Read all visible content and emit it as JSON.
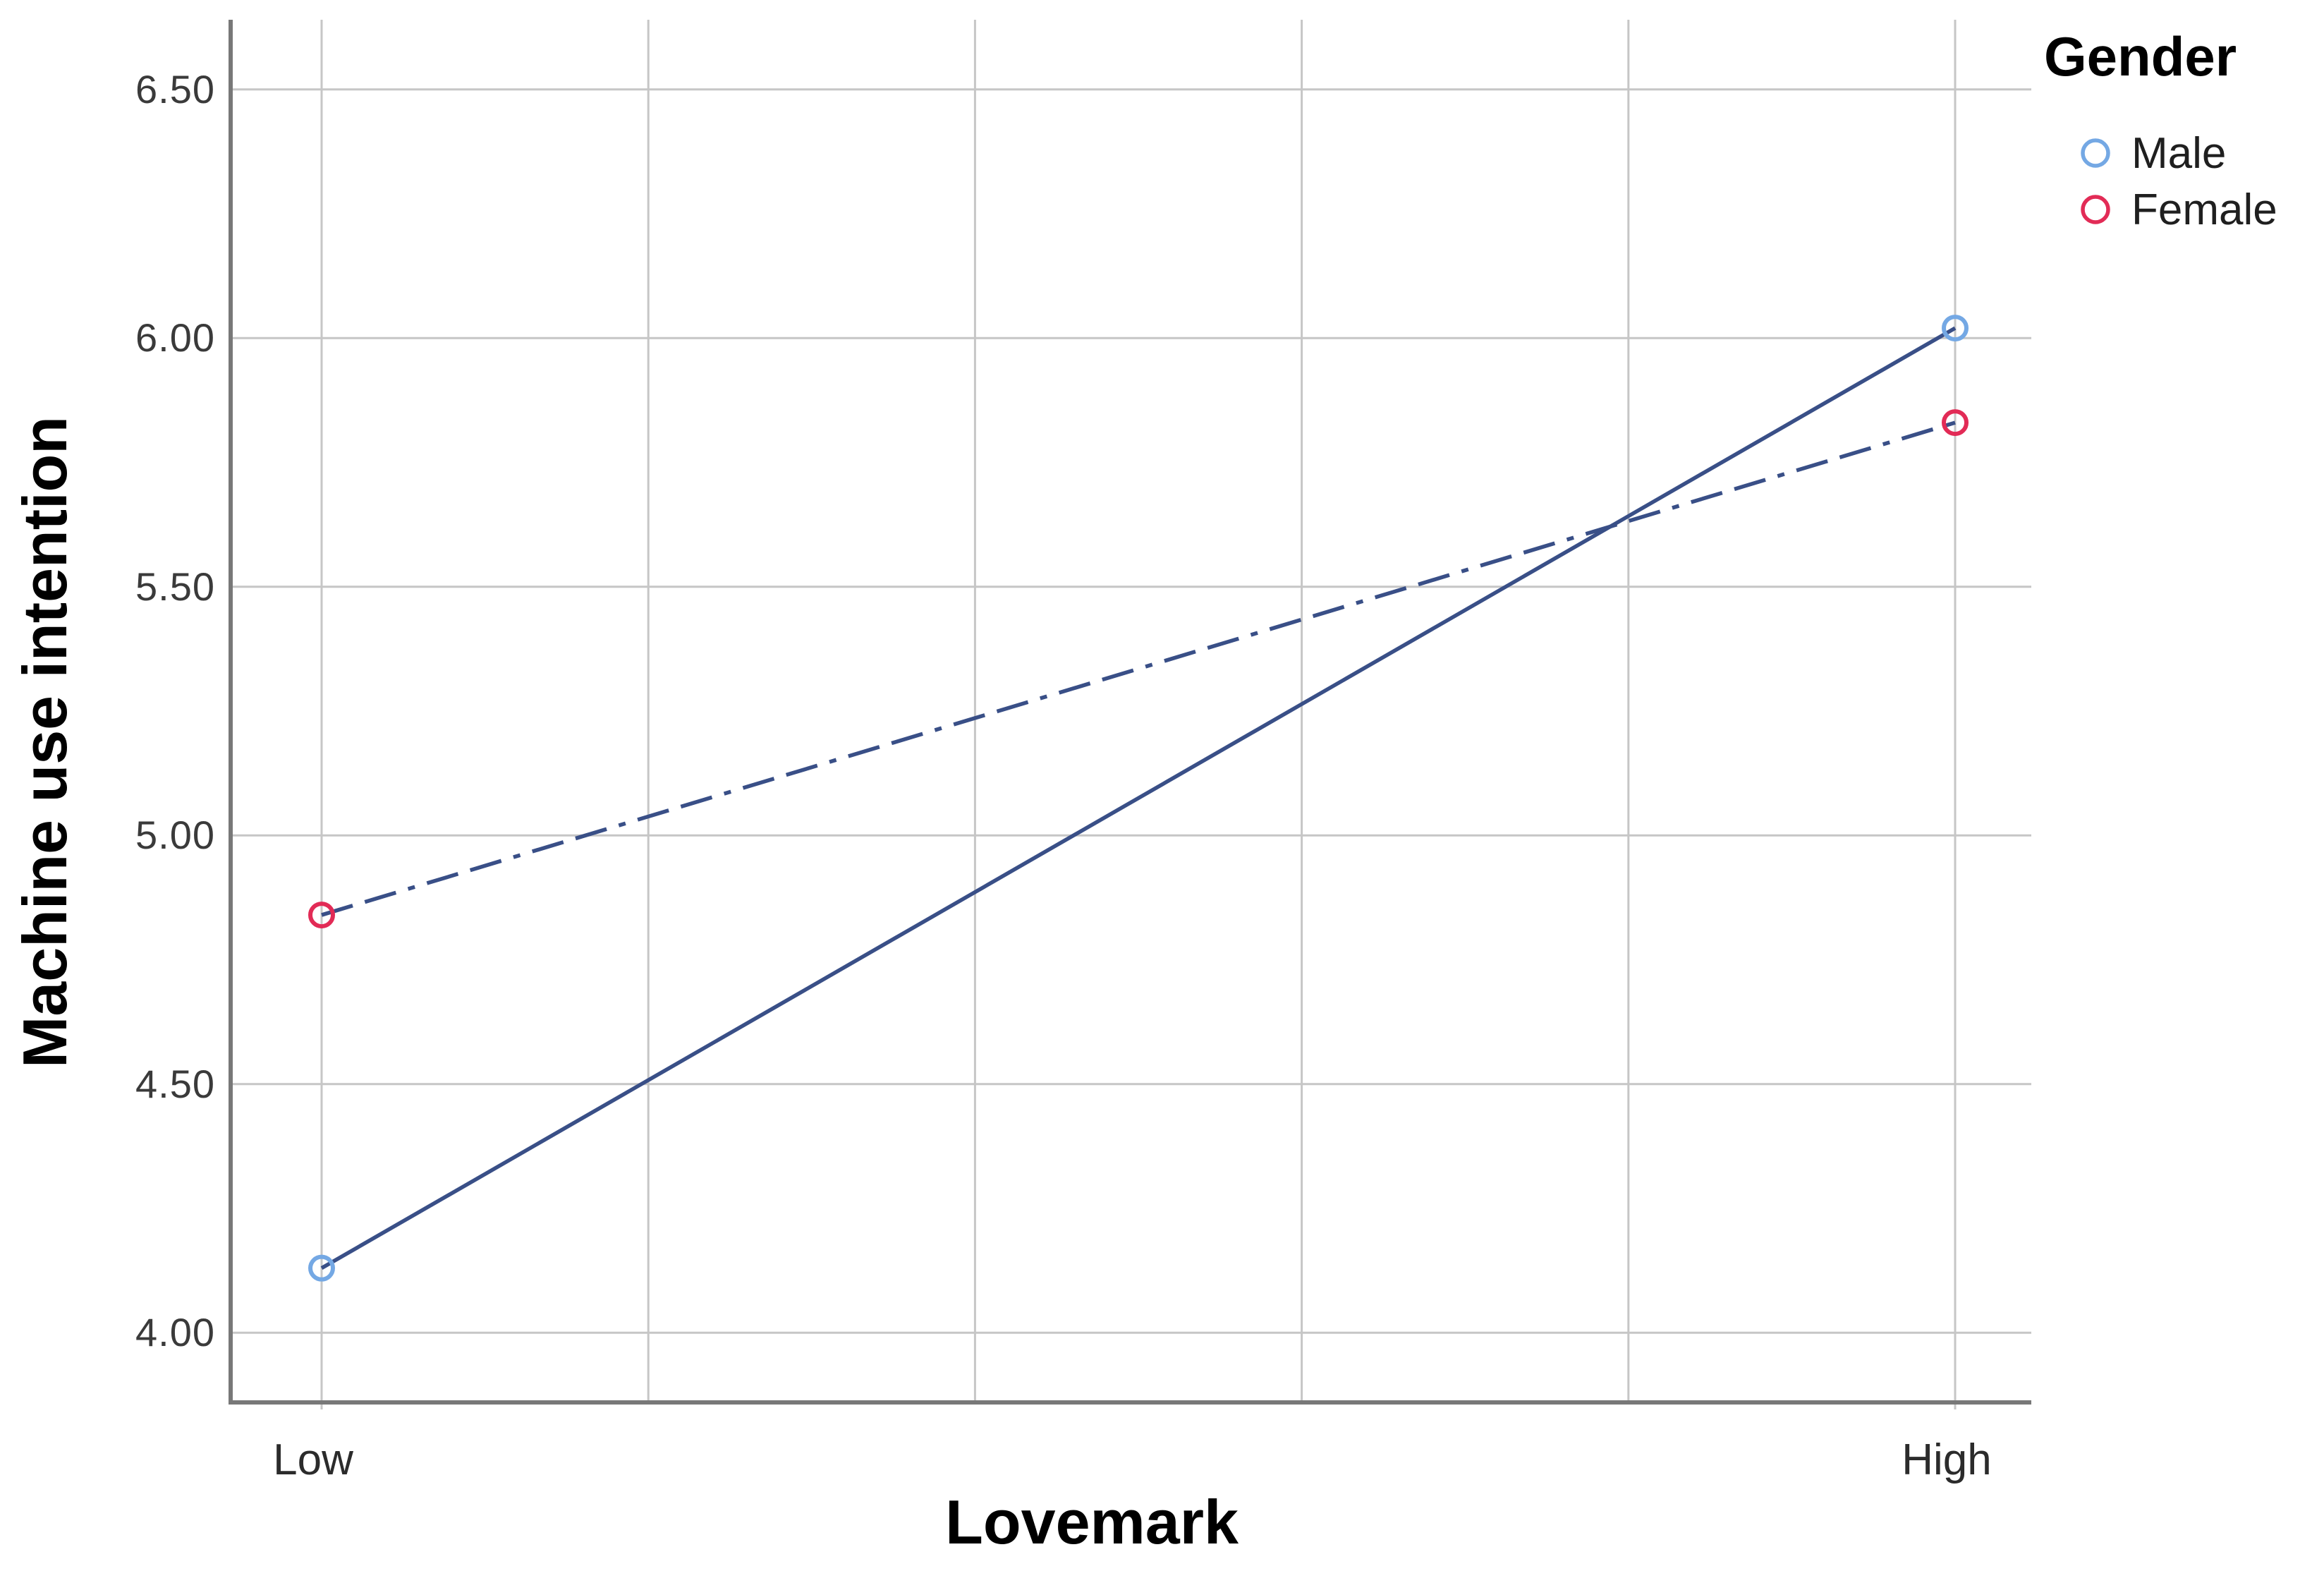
{
  "chart_data": {
    "type": "line",
    "title": "",
    "xlabel": "Lovemark",
    "ylabel": "Machine use intention",
    "categories": [
      "Low",
      "High"
    ],
    "series": [
      {
        "name": "Male",
        "values": [
          4.13,
          6.02
        ],
        "line_style": "solid",
        "marker": "open-circle",
        "marker_color": "#74A8E4"
      },
      {
        "name": "Female",
        "values": [
          4.84,
          5.83
        ],
        "line_style": "dash-dot",
        "marker": "open-circle",
        "marker_color": "#E22B56"
      }
    ],
    "line_color": "#394F87",
    "y_ticks": [
      "6.50",
      "6.00",
      "5.50",
      "5.00",
      "4.50",
      "4.00"
    ],
    "y_tick_values": [
      6.5,
      6.0,
      5.5,
      5.0,
      4.5,
      4.0
    ],
    "ylim": [
      3.86,
      6.64
    ],
    "grid": true,
    "legend": {
      "position": "top-right",
      "title": "Gender",
      "items": [
        {
          "label": "Male",
          "color": "#74A8E4"
        },
        {
          "label": "Female",
          "color": "#E22B56"
        }
      ]
    }
  },
  "colors": {
    "gridline": "#C6C6C6",
    "axis": "#787878",
    "tick_text": "#3a3a3a",
    "label_text": "#000000"
  }
}
